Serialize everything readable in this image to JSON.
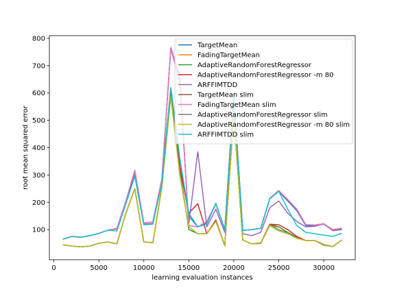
{
  "chart_data": {
    "type": "line",
    "xlabel": "learning evaluation instances",
    "ylabel": "root mean squared error",
    "xlim": [
      -500,
      33500
    ],
    "ylim": [
      -10,
      810
    ],
    "xticks": [
      0,
      5000,
      10000,
      15000,
      20000,
      25000,
      30000
    ],
    "yticks": [
      100,
      200,
      300,
      400,
      500,
      600,
      700,
      800
    ],
    "legend_position": "upper-right",
    "grid": false,
    "x": [
      1000,
      2000,
      3000,
      4000,
      5000,
      6000,
      7000,
      8000,
      9000,
      10000,
      11000,
      12000,
      13000,
      14000,
      15000,
      16000,
      17000,
      18000,
      19000,
      20000,
      21000,
      22000,
      23000,
      24000,
      25000,
      26000,
      27000,
      28000,
      29000,
      30000,
      31000,
      32000
    ],
    "series": [
      {
        "name": "TargetMean",
        "color": "#1f77b4",
        "values": [
          65,
          75,
          72,
          78,
          86,
          98,
          103,
          195,
          300,
          120,
          122,
          280,
          620,
          360,
          150,
          110,
          125,
          195,
          100,
          590,
          97,
          100,
          105,
          213,
          240,
          205,
          170,
          115,
          115,
          120,
          98,
          102
        ]
      },
      {
        "name": "FadingTargetMean",
        "color": "#ff7f0e",
        "values": [
          45,
          40,
          37,
          40,
          50,
          55,
          48,
          160,
          250,
          55,
          52,
          255,
          590,
          300,
          110,
          85,
          85,
          132,
          40,
          520,
          62,
          48,
          50,
          115,
          110,
          90,
          70,
          60,
          60,
          45,
          38,
          62
        ]
      },
      {
        "name": "AdaptiveRandomForestRegressor",
        "color": "#2ca02c",
        "values": [
          45,
          40,
          37,
          40,
          50,
          55,
          48,
          160,
          250,
          55,
          52,
          255,
          600,
          320,
          100,
          85,
          85,
          135,
          42,
          525,
          62,
          48,
          50,
          120,
          110,
          90,
          72,
          60,
          60,
          45,
          38,
          62
        ]
      },
      {
        "name": "AdaptiveRandomForestRegressor -m 80",
        "color": "#d62728",
        "values": [
          45,
          40,
          37,
          40,
          50,
          55,
          48,
          160,
          250,
          55,
          52,
          255,
          600,
          330,
          160,
          195,
          85,
          135,
          42,
          525,
          62,
          48,
          52,
          120,
          118,
          100,
          75,
          60,
          60,
          45,
          38,
          62
        ]
      },
      {
        "name": "ARFFIMTDD",
        "color": "#9467bd",
        "values": [
          65,
          75,
          72,
          78,
          86,
          98,
          103,
          195,
          300,
          120,
          122,
          280,
          765,
          640,
          120,
          385,
          110,
          175,
          90,
          590,
          85,
          78,
          90,
          180,
          205,
          160,
          130,
          110,
          112,
          122,
          96,
          100
        ]
      },
      {
        "name": "TargetMean slim",
        "color": "#8c564b",
        "values": [
          65,
          75,
          72,
          78,
          86,
          98,
          103,
          200,
          315,
          125,
          128,
          285,
          765,
          660,
          115,
          110,
          130,
          195,
          100,
          600,
          97,
          100,
          105,
          215,
          243,
          210,
          175,
          118,
          117,
          121,
          100,
          105
        ]
      },
      {
        "name": "FadingTargetMean slim",
        "color": "#e377c2",
        "values": [
          65,
          75,
          72,
          78,
          86,
          98,
          105,
          205,
          318,
          125,
          128,
          285,
          768,
          660,
          115,
          110,
          130,
          195,
          100,
          600,
          97,
          100,
          105,
          215,
          243,
          210,
          175,
          118,
          117,
          121,
          100,
          105
        ]
      },
      {
        "name": "AdaptiveRandomForestRegressor slim",
        "color": "#7f7f7f",
        "values": [
          45,
          40,
          37,
          40,
          50,
          55,
          48,
          160,
          250,
          55,
          52,
          255,
          590,
          305,
          110,
          85,
          85,
          130,
          42,
          520,
          62,
          48,
          52,
          118,
          100,
          88,
          70,
          60,
          60,
          45,
          38,
          62
        ]
      },
      {
        "name": "AdaptiveRandomForestRegressor -m 80 slim",
        "color": "#bcbd22",
        "values": [
          45,
          40,
          37,
          40,
          50,
          55,
          48,
          160,
          250,
          55,
          52,
          255,
          585,
          300,
          110,
          85,
          85,
          130,
          42,
          518,
          62,
          48,
          52,
          115,
          95,
          85,
          68,
          60,
          60,
          42,
          38,
          62
        ]
      },
      {
        "name": "ARFFIMTDD slim",
        "color": "#17becf",
        "values": [
          65,
          75,
          72,
          78,
          86,
          98,
          95,
          195,
          295,
          118,
          120,
          270,
          620,
          360,
          160,
          110,
          120,
          197,
          100,
          590,
          97,
          100,
          105,
          213,
          240,
          175,
          115,
          90,
          85,
          80,
          75,
          87
        ]
      }
    ]
  }
}
